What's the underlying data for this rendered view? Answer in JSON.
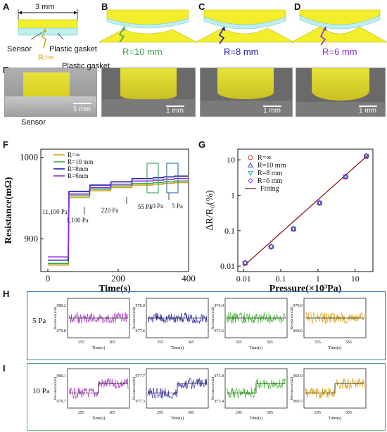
{
  "panel_labels": {
    "a": "A",
    "b": "B",
    "c": "C",
    "d": "D",
    "e": "E",
    "f": "F",
    "g": "G",
    "h": "H",
    "i": "I"
  },
  "panel_a": {
    "dimension": "3 mm",
    "sensor": "Sensor",
    "gasket": "Plastic gasket",
    "radius": "R=∞"
  },
  "panel_b": {
    "radius": "R=10 mm"
  },
  "panel_c": {
    "radius": "R=8 mm"
  },
  "panel_d": {
    "radius": "R=6 mm"
  },
  "panel_e": {
    "gasket": "Plastic gasket",
    "sensor": "Sensor",
    "scale": "1 mm"
  },
  "colors": {
    "inf": "#d4a017",
    "r10": "#3aa845",
    "r8": "#1c1ca8",
    "r6": "#8a2be2",
    "sensor_yellow": "#f2ee2c",
    "gasket_cyan": "#bfeef0",
    "fit": "#8b1a1a",
    "box5": "#3a7ab8",
    "box10": "#4aa86a"
  },
  "chart_data": [
    {
      "type": "line",
      "panel": "F",
      "xlabel": "Time(s)",
      "ylabel": "Resistance(mΩ)",
      "xlim": [
        -20,
        400
      ],
      "ylim": [
        860,
        1010
      ],
      "xticks": [
        0,
        200,
        400
      ],
      "yticks": [
        900,
        1000
      ],
      "legend": [
        "R=∞",
        "R=10 mm",
        "R=8mm",
        "R=6mm"
      ],
      "annotations": [
        "11,100 Pa",
        "1,100 Pa",
        "220 Pa",
        "55 Pa",
        "10 Pa",
        "5 Pa"
      ],
      "series": [
        {
          "name": "R=∞",
          "color": "#d4a017",
          "x": [
            0,
            58,
            60,
            118,
            120,
            178,
            180,
            238,
            240,
            298,
            300,
            328,
            330,
            358,
            360,
            398
          ],
          "y": [
            868,
            868,
            951,
            951,
            959,
            959,
            963,
            963,
            966,
            966,
            967,
            967,
            968,
            968,
            969,
            969
          ]
        },
        {
          "name": "R=10 mm",
          "color": "#3aa845",
          "x": [
            0,
            58,
            60,
            118,
            120,
            178,
            180,
            238,
            240,
            298,
            300,
            328,
            330,
            358,
            360,
            398
          ],
          "y": [
            870,
            870,
            953,
            953,
            961,
            961,
            965,
            965,
            968,
            968,
            969,
            969,
            970,
            970,
            971,
            971
          ]
        },
        {
          "name": "R=8mm",
          "color": "#1c1ca8",
          "x": [
            0,
            58,
            60,
            118,
            120,
            178,
            180,
            238,
            240,
            298,
            300,
            328,
            330,
            358,
            360,
            398
          ],
          "y": [
            874,
            874,
            958,
            958,
            966,
            966,
            970,
            970,
            974,
            974,
            975,
            975,
            976,
            976,
            977,
            977
          ]
        },
        {
          "name": "R=6mm",
          "color": "#8a2be2",
          "x": [
            0,
            58,
            60,
            118,
            120,
            178,
            180,
            238,
            240,
            298,
            300,
            328,
            330,
            358,
            360,
            398
          ],
          "y": [
            878,
            878,
            955,
            955,
            963,
            963,
            967,
            967,
            971,
            971,
            972,
            972,
            973,
            973,
            974,
            974
          ]
        }
      ]
    },
    {
      "type": "scatter",
      "panel": "G",
      "xlabel": "Pressure(×10³Pa)",
      "ylabel": "ΔR/R₀(%)",
      "xscale": "log",
      "yscale": "log",
      "xlim": [
        0.007,
        30
      ],
      "ylim": [
        0.007,
        20
      ],
      "xticks": [
        "0.01",
        "0.1",
        "1",
        "10"
      ],
      "yticks": [
        "0.01",
        "0.1",
        "1",
        "10"
      ],
      "legend": [
        "R=∞",
        "R=10 mm",
        "R=8 mm",
        "R=6 mm",
        "Fitting"
      ],
      "x": [
        0.011,
        0.055,
        0.22,
        1.1,
        5.5,
        20
      ],
      "series": [
        {
          "name": "R=∞",
          "marker": "circle",
          "color": "#c0392b",
          "values": [
            0.012,
            0.035,
            0.11,
            0.6,
            3.3,
            12.5
          ]
        },
        {
          "name": "R=10 mm",
          "marker": "triangle-up",
          "color": "#2c3ea8",
          "values": [
            0.0125,
            0.036,
            0.112,
            0.62,
            3.4,
            13
          ]
        },
        {
          "name": "R=8 mm",
          "marker": "triangle-down",
          "color": "#1aa8a8",
          "values": [
            0.0122,
            0.035,
            0.114,
            0.61,
            3.35,
            12.8
          ]
        },
        {
          "name": "R=6 mm",
          "marker": "diamond",
          "color": "#8a2be2",
          "values": [
            0.0124,
            0.036,
            0.113,
            0.62,
            3.38,
            12.9
          ]
        }
      ],
      "fit": {
        "name": "Fitting",
        "color": "#8b1a1a",
        "x": [
          0.01,
          22
        ],
        "y": [
          0.01,
          13.5
        ]
      }
    },
    {
      "type": "line",
      "panel": "H",
      "row_label": "5 Pa",
      "ylabel": "Resistance(mΩ)",
      "xlabel": "Time(s)",
      "subplots": [
        {
          "color": "#b040c8",
          "yticks": [
            "980.2",
            "979.8"
          ],
          "xticks": [
            "355",
            "365"
          ]
        },
        {
          "color": "#3a2aa8",
          "yticks": [
            "978.0",
            "977.6"
          ],
          "xticks": [
            "355",
            "365"
          ]
        },
        {
          "color": "#4ab83a",
          "yticks": [
            "974.0",
            "973.6"
          ],
          "xticks": [
            "355",
            "365"
          ]
        },
        {
          "color": "#e0a020",
          "yticks": [
            "970.0",
            "969.6"
          ],
          "xticks": [
            "355",
            "365"
          ]
        }
      ]
    },
    {
      "type": "line",
      "panel": "I",
      "row_label": "10 Pa",
      "ylabel": "Resistance(mΩ)",
      "xlabel": "Time(s)",
      "subplots": [
        {
          "color": "#b040c8",
          "yticks": [
            "980.1",
            "979.7"
          ],
          "xticks": [
            "295",
            "305"
          ]
        },
        {
          "color": "#3a2aa8",
          "yticks": [
            "977.7",
            "977.3"
          ],
          "xticks": [
            "295",
            "305"
          ]
        },
        {
          "color": "#4ab83a",
          "yticks": [
            "973.8",
            "973.4"
          ],
          "xticks": [
            "295",
            "305"
          ]
        },
        {
          "color": "#e0a020",
          "yticks": [
            "969.9",
            "969.5"
          ],
          "xticks": [
            "295",
            "305"
          ]
        }
      ]
    }
  ]
}
